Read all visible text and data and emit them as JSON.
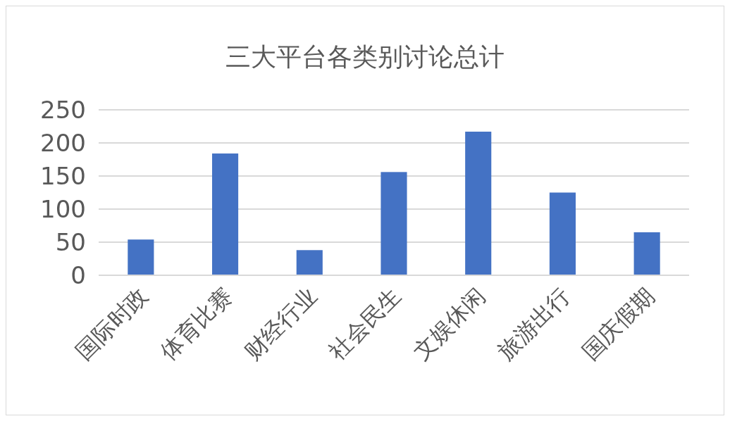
{
  "chart_data": {
    "type": "bar",
    "title": "三大平台各类别讨论总计",
    "categories": [
      "国际时政",
      "体育比赛",
      "财经行业",
      "社会民生",
      "文娱休闲",
      "旅游出行",
      "国庆假期"
    ],
    "values": [
      54,
      184,
      38,
      156,
      217,
      125,
      65
    ],
    "color": "#4472c4",
    "ylim": [
      0,
      250
    ],
    "yticks": [
      0,
      50,
      100,
      150,
      200,
      250
    ],
    "grid": "y"
  }
}
